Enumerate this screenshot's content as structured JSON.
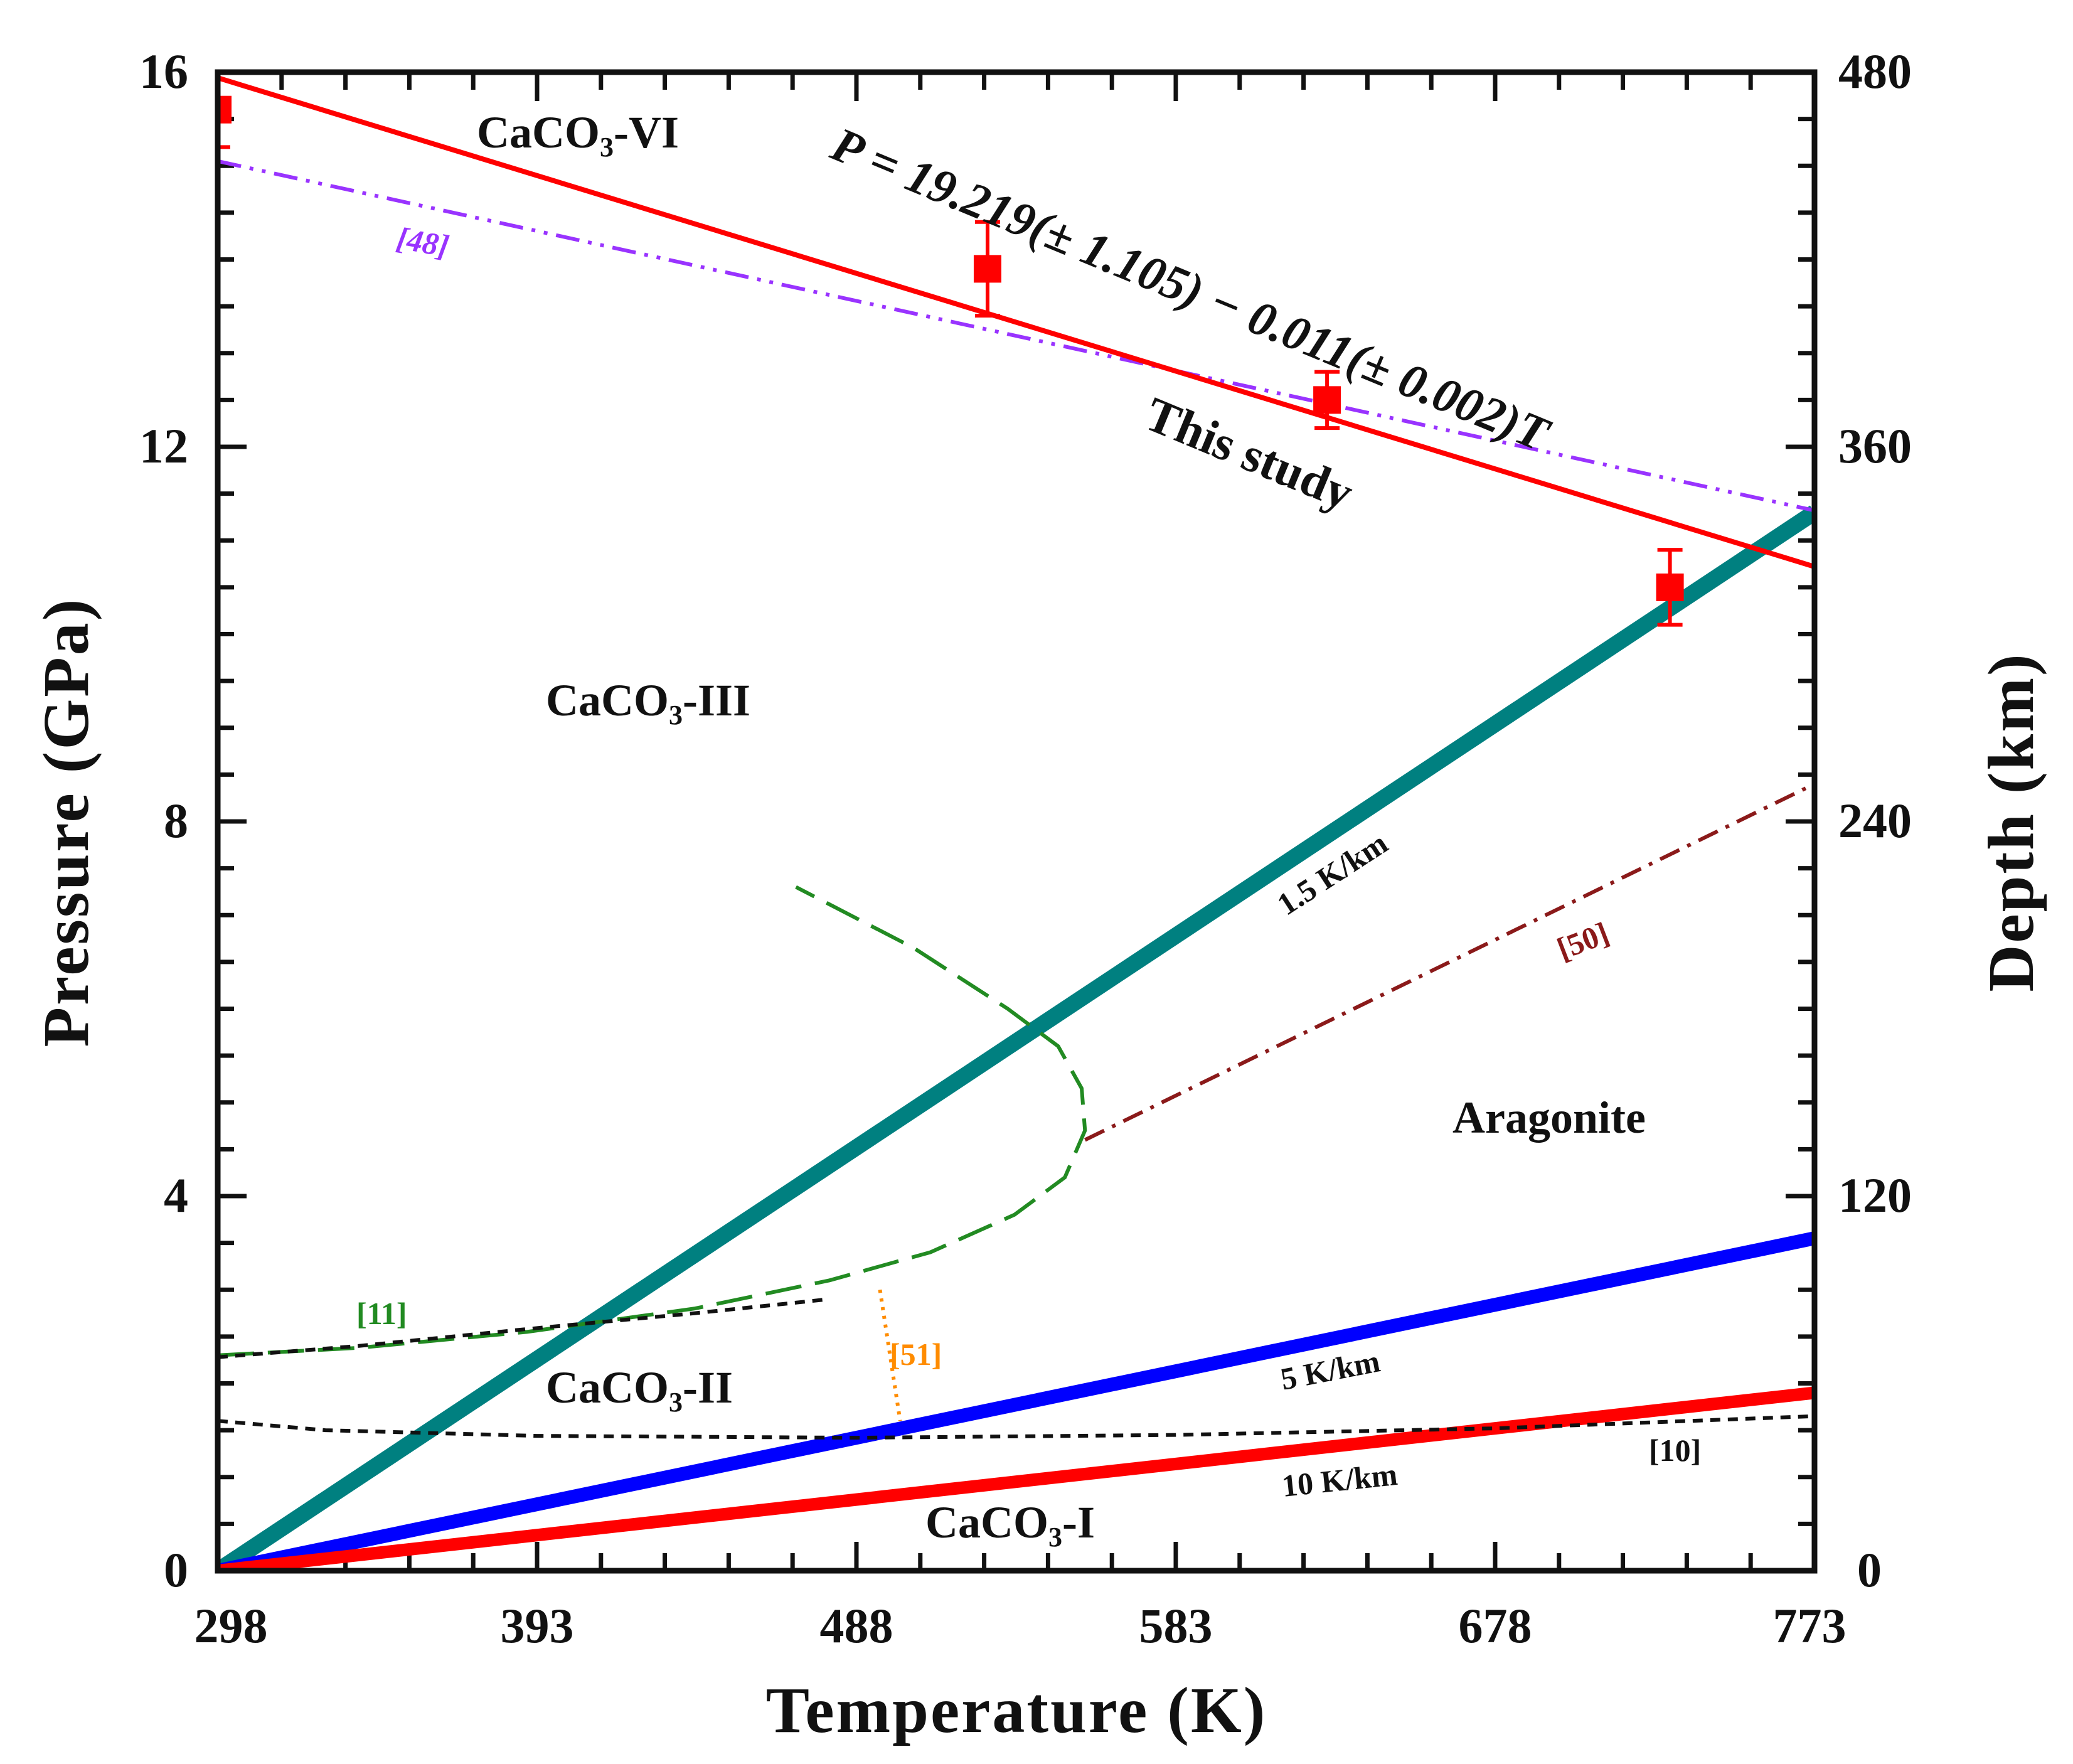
{
  "chart_data": {
    "type": "line",
    "xlabel": "Temperature (K)",
    "ylabel": "Pressure (GPa)",
    "y2label": "Depth (km)",
    "xlim": [
      298,
      773
    ],
    "ylim": [
      0,
      16
    ],
    "y2lim": [
      0,
      480
    ],
    "x_ticks": [
      "298",
      "393",
      "488",
      "583",
      "678",
      "773"
    ],
    "y_ticks": [
      "0",
      "4",
      "8",
      "12",
      "16"
    ],
    "y2_ticks": [
      "0",
      "120",
      "240",
      "360",
      "480"
    ],
    "regions": {
      "vi_main": "CaCO",
      "vi_sub": "3",
      "vi_tail": "-VI",
      "iii_main": "CaCO",
      "iii_sub": "3",
      "iii_tail": "-III",
      "ii_main": "CaCO",
      "ii_sub": "3",
      "ii_tail": "-II",
      "i_main": "CaCO",
      "i_sub": "3",
      "i_tail": "-I",
      "aragonite": "Aragonite"
    },
    "equation_label": "P = 19.219(± 1.105) − 0.011(± 0.002)T",
    "this_study_label": "This  study",
    "refs": {
      "r48": "[48]",
      "r50": "[50]",
      "r11": "[11]",
      "r51": "[51]",
      "r10": "[10]"
    },
    "geotherm_labels": {
      "g15": "1.5 K/km",
      "g5": "5 K/km",
      "g10": "10 K/km"
    },
    "series": [
      {
        "name": "This study (fit)",
        "color": "#ff0000",
        "width": 8,
        "x": [
          298,
          773
        ],
        "y": [
          15.94,
          10.72
        ]
      },
      {
        "name": "This study (data)",
        "color": "#ff0000",
        "type": "scatter",
        "x": [
          298,
          527,
          628,
          730
        ],
        "y": [
          15.6,
          13.9,
          12.5,
          10.5
        ],
        "err": [
          0.4,
          0.5,
          0.3,
          0.4
        ]
      },
      {
        "name": "[48]",
        "color": "#9933ff",
        "dash": "dashdotdot",
        "x": [
          298,
          773
        ],
        "y": [
          15.05,
          11.32
        ]
      },
      {
        "name": "[50]",
        "color": "#8b1a1a",
        "dash": "dashdot",
        "x": [
          556,
          773
        ],
        "y": [
          4.6,
          8.4
        ]
      },
      {
        "name": "[11]",
        "color": "#228b22",
        "dash": "longdash",
        "x": [
          298,
          340,
          390,
          440,
          480,
          510,
          535,
          550,
          556,
          555,
          548,
          533,
          505,
          470
        ],
        "y": [
          2.3,
          2.38,
          2.55,
          2.8,
          3.1,
          3.4,
          3.8,
          4.2,
          4.7,
          5.15,
          5.6,
          6.0,
          6.65,
          7.3
        ]
      },
      {
        "name": "[11] black dash",
        "color": "#111111",
        "dash": "shortdash",
        "x": [
          298,
          340,
          390,
          440,
          480
        ],
        "y": [
          2.28,
          2.4,
          2.58,
          2.75,
          2.9
        ]
      },
      {
        "name": "[51]",
        "color": "#ff8c00",
        "dash": "dot",
        "x": [
          495,
          501
        ],
        "y": [
          3.0,
          1.6
        ]
      },
      {
        "name": "[10]",
        "color": "#111111",
        "dash": "shortdash",
        "x": [
          298,
          330,
          393,
          488,
          583,
          678,
          773
        ],
        "y": [
          1.6,
          1.5,
          1.44,
          1.42,
          1.45,
          1.52,
          1.65
        ]
      },
      {
        "name": "1.5 K/km",
        "color": "#008080",
        "width": 26,
        "x": [
          298,
          773
        ],
        "y": [
          0,
          11.3
        ]
      },
      {
        "name": "5 K/km",
        "color": "#0000ff",
        "width": 22,
        "x": [
          298,
          773
        ],
        "y": [
          0,
          3.55
        ]
      },
      {
        "name": "10 K/km",
        "color": "#ff0000",
        "width": 20,
        "x": [
          298,
          773
        ],
        "y": [
          0,
          1.9
        ]
      }
    ]
  }
}
